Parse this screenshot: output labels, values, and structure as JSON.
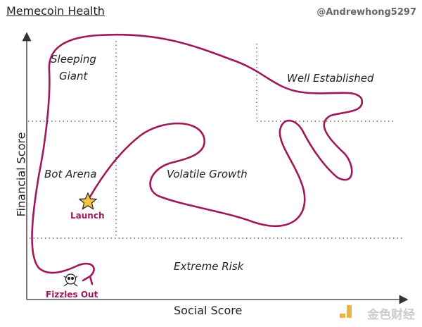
{
  "title": "Memecoin Health",
  "handle": "@Andrewhong5297",
  "axes": {
    "x_label": "Social Score",
    "y_label": "Financial Score"
  },
  "zones": {
    "sleeping_giant_1": "Sleeping",
    "sleeping_giant_2": "Giant",
    "well_established": "Well Established",
    "bot_arena": "Bot Arena",
    "volatile_growth": "Volatile Growth",
    "extreme_risk": "Extreme Risk"
  },
  "markers": {
    "launch": "Launch",
    "fizzles_out": "Fizzles Out"
  },
  "icons": {
    "launch": "star-icon",
    "end": "skull-crossbones-icon"
  },
  "watermark": "金色财经",
  "colors": {
    "path": "#a0185a",
    "star": "#f5c542"
  }
}
